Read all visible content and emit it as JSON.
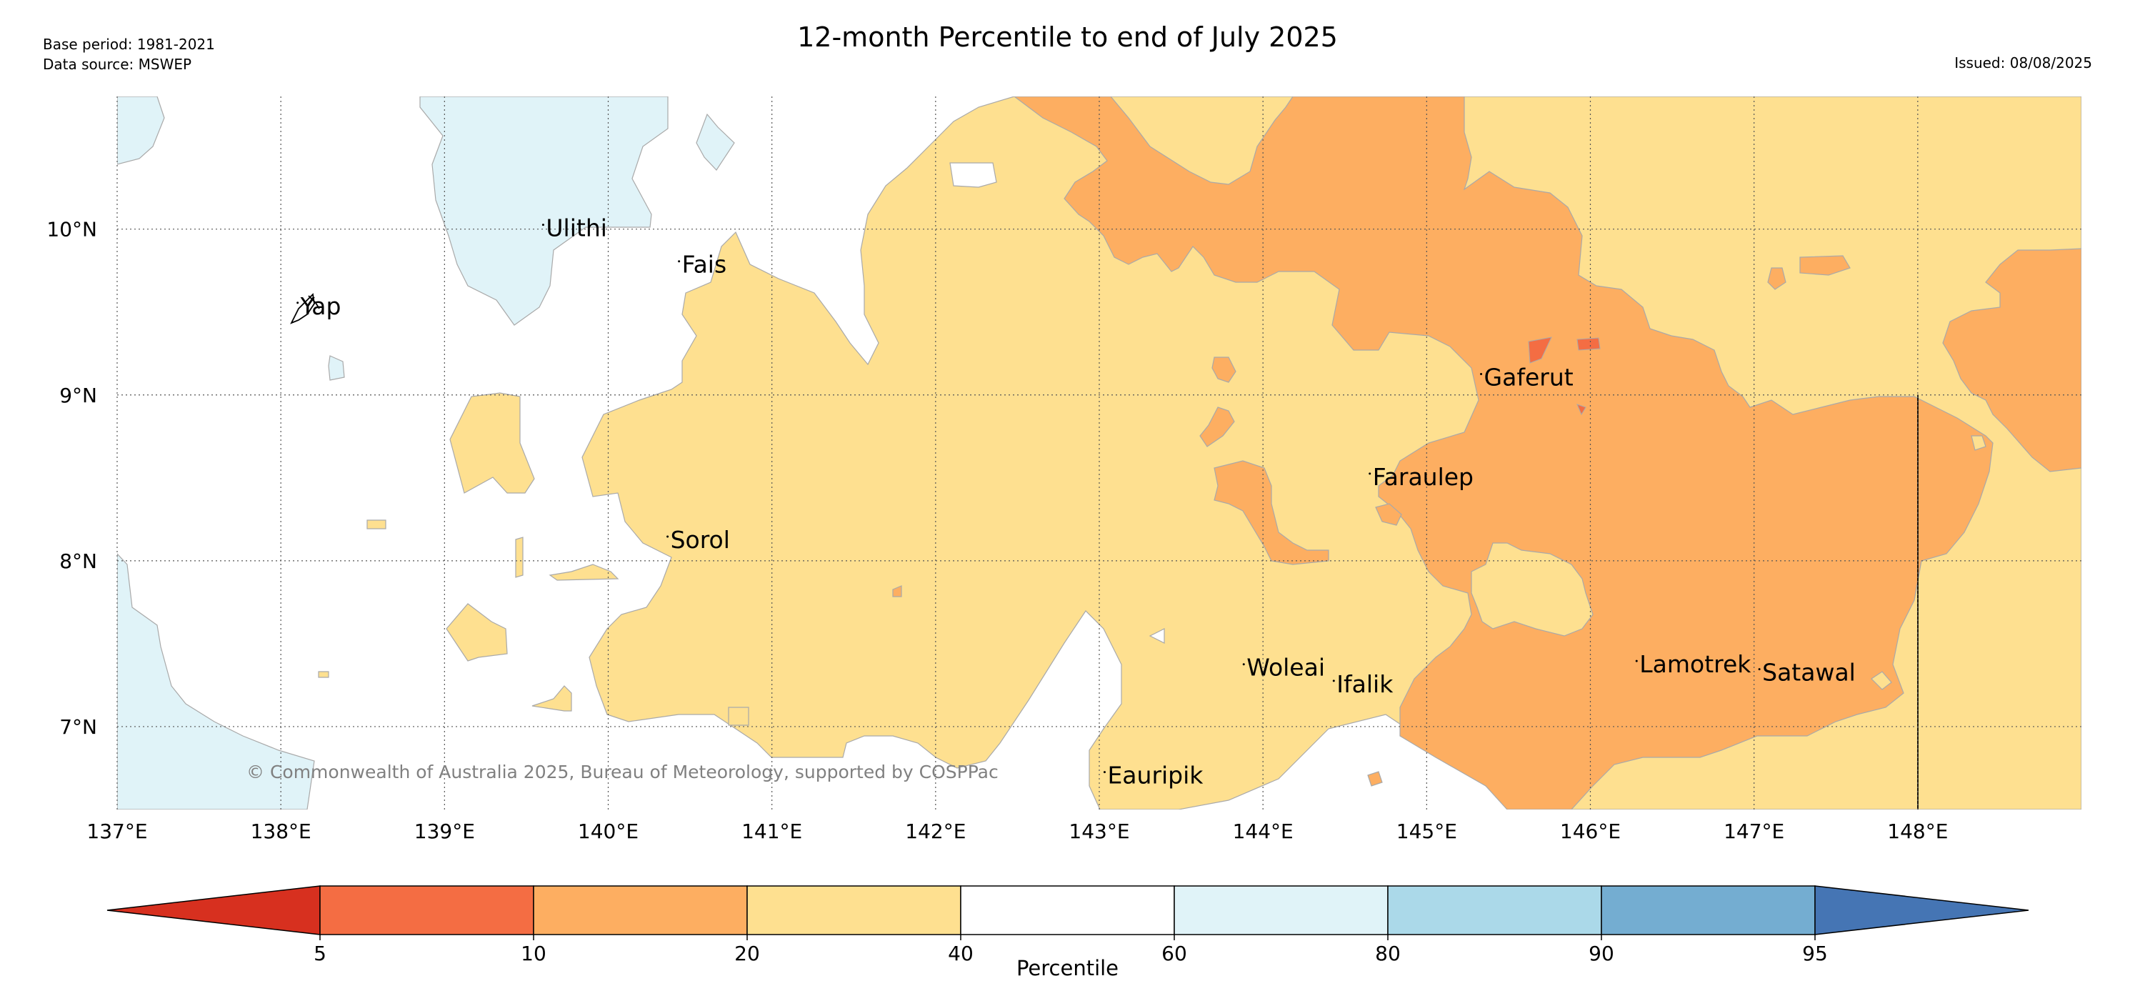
{
  "header": {
    "title": "12-month Percentile to end of July 2025",
    "base_period": "Base period: 1981-2021",
    "data_source": "Data source: MSWEP",
    "issued": "Issued: 08/08/2025"
  },
  "map": {
    "lon_range": [
      137,
      149
    ],
    "lat_range": [
      6.5,
      10.8
    ],
    "lon_ticks": [
      "137°E",
      "138°E",
      "139°E",
      "140°E",
      "141°E",
      "142°E",
      "143°E",
      "144°E",
      "145°E",
      "146°E",
      "147°E",
      "148°E"
    ],
    "lat_ticks": [
      "10°N",
      "9°N",
      "8°N",
      "7°N"
    ],
    "places": [
      {
        "name": "Ulithi",
        "lon": 139.62,
        "lat": 10.0
      },
      {
        "name": "Fais",
        "lon": 140.45,
        "lat": 9.78
      },
      {
        "name": "Yap",
        "lon": 138.12,
        "lat": 9.53
      },
      {
        "name": "Gaferut",
        "lon": 145.35,
        "lat": 9.1
      },
      {
        "name": "Faraulep",
        "lon": 144.67,
        "lat": 8.5
      },
      {
        "name": "Sorol",
        "lon": 140.38,
        "lat": 8.12
      },
      {
        "name": "Woleai",
        "lon": 143.9,
        "lat": 7.35
      },
      {
        "name": "Ifalik",
        "lon": 144.45,
        "lat": 7.25
      },
      {
        "name": "Lamotrek",
        "lon": 146.3,
        "lat": 7.37
      },
      {
        "name": "Satawal",
        "lon": 147.05,
        "lat": 7.32
      },
      {
        "name": "Eauripik",
        "lon": 143.05,
        "lat": 6.7
      }
    ],
    "copyright": "© Commonwealth of Australia 2025, Bureau of Meteorology, supported by COSPPac",
    "colors": {
      "p0_5": "#d7301f",
      "p5_10": "#f46d43",
      "p10_20": "#fdae61",
      "p20_40": "#fee090",
      "p40_60": "#ffffff",
      "p60_80": "#e0f3f8",
      "p80_90": "#abd9e9",
      "p90_95": "#74add1",
      "p95_100": "#4575b4"
    }
  },
  "colorbar": {
    "title": "Percentile",
    "ticks": [
      "5",
      "10",
      "20",
      "40",
      "60",
      "80",
      "90",
      "95"
    ],
    "colors": [
      "#d7301f",
      "#f46d43",
      "#fdae61",
      "#fee090",
      "#ffffff",
      "#e0f3f8",
      "#abd9e9",
      "#74add1",
      "#4575b4"
    ]
  }
}
